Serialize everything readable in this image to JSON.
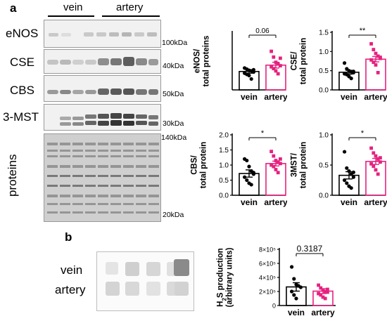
{
  "panel_a": {
    "label": "a",
    "group_labels": [
      "vein",
      "artery"
    ],
    "blot_rows": [
      {
        "name": "eNOS",
        "kda": "100kDa"
      },
      {
        "name": "CSE",
        "kda": "40kDa"
      },
      {
        "name": "CBS",
        "kda": "50kDa"
      },
      {
        "name": "3-MST",
        "kda": "30kDa"
      },
      {
        "name": "proteins",
        "kda_top": "140kDa",
        "kda_bottom": "20kDa"
      }
    ]
  },
  "panel_b": {
    "label": "b",
    "row_labels": [
      "vein",
      "artery"
    ]
  },
  "colors": {
    "vein": "#000000",
    "artery": "#e6217f"
  },
  "chart_data": [
    {
      "id": "enos",
      "type": "bar",
      "ylabel": "eNOS/\ntotal proteins",
      "categories": [
        "vein",
        "artery"
      ],
      "ylim": [
        0,
        1.0
      ],
      "yticks": [],
      "values": [
        0.32,
        0.43
      ],
      "sem": [
        0.03,
        0.05
      ],
      "points": [
        [
          0.38,
          0.36,
          0.34,
          0.33,
          0.31,
          0.29,
          0.27,
          0.25,
          0.19,
          0.35
        ],
        [
          0.67,
          0.57,
          0.48,
          0.45,
          0.42,
          0.4,
          0.37,
          0.33,
          0.28,
          0.55
        ]
      ],
      "annotation": "0.06"
    },
    {
      "id": "cse",
      "type": "bar",
      "ylabel": "CSE/\ntotal protein",
      "categories": [
        "vein",
        "artery"
      ],
      "ylim": [
        0,
        1.5
      ],
      "yticks": [
        "0.0",
        "0.5",
        "1.0",
        "1.5"
      ],
      "values": [
        0.46,
        0.8
      ],
      "sem": [
        0.05,
        0.07
      ],
      "points": [
        [
          0.7,
          0.55,
          0.5,
          0.47,
          0.45,
          0.42,
          0.4,
          0.35,
          0.3,
          0.48
        ],
        [
          1.2,
          1.05,
          0.95,
          0.88,
          0.82,
          0.78,
          0.72,
          0.65,
          0.45,
          0.85
        ]
      ],
      "annotation": "**"
    },
    {
      "id": "cbs",
      "type": "bar",
      "ylabel": "CBS/\ntotal protein",
      "categories": [
        "vein",
        "artery"
      ],
      "ylim": [
        0,
        2.0
      ],
      "yticks": [
        "0.0",
        "0.5",
        "1.0",
        "1.5",
        "2.0"
      ],
      "values": [
        0.72,
        1.05
      ],
      "sem": [
        0.12,
        0.08
      ],
      "points": [
        [
          1.2,
          1.15,
          0.95,
          0.8,
          0.7,
          0.6,
          0.5,
          0.4,
          0.35,
          0.75
        ],
        [
          1.45,
          1.3,
          1.15,
          1.1,
          1.05,
          1.0,
          0.95,
          0.85,
          0.75,
          1.2
        ]
      ],
      "annotation": "*"
    },
    {
      "id": "mst",
      "type": "bar",
      "ylabel": "3MST/\ntotal protein",
      "categories": [
        "vein",
        "artery"
      ],
      "ylim": [
        0,
        1.0
      ],
      "yticks": [
        "0.0",
        "0.5",
        "1.0"
      ],
      "values": [
        0.33,
        0.56
      ],
      "sem": [
        0.06,
        0.05
      ],
      "points": [
        [
          0.72,
          0.45,
          0.4,
          0.35,
          0.3,
          0.25,
          0.2,
          0.15,
          0.12,
          0.38
        ],
        [
          0.78,
          0.7,
          0.65,
          0.6,
          0.55,
          0.52,
          0.48,
          0.42,
          0.35,
          0.62
        ]
      ],
      "annotation": "*"
    },
    {
      "id": "h2s",
      "type": "bar",
      "ylabel": "H2S production\n(arbitrary units)",
      "categories": [
        "vein",
        "artery"
      ],
      "ylim": [
        0,
        800000
      ],
      "yticks": [
        "0",
        "2×10⁵",
        "4×10⁵",
        "6×10⁵",
        "8×10⁵"
      ],
      "values": [
        265000,
        205000
      ],
      "sem": [
        60000,
        35000
      ],
      "points": [
        [
          550000,
          380000,
          300000,
          280000,
          260000,
          200000,
          150000,
          100000
        ],
        [
          290000,
          250000,
          220000,
          200000,
          190000,
          170000,
          150000,
          120000,
          100000,
          230000
        ]
      ],
      "annotation": "0.3187"
    }
  ]
}
